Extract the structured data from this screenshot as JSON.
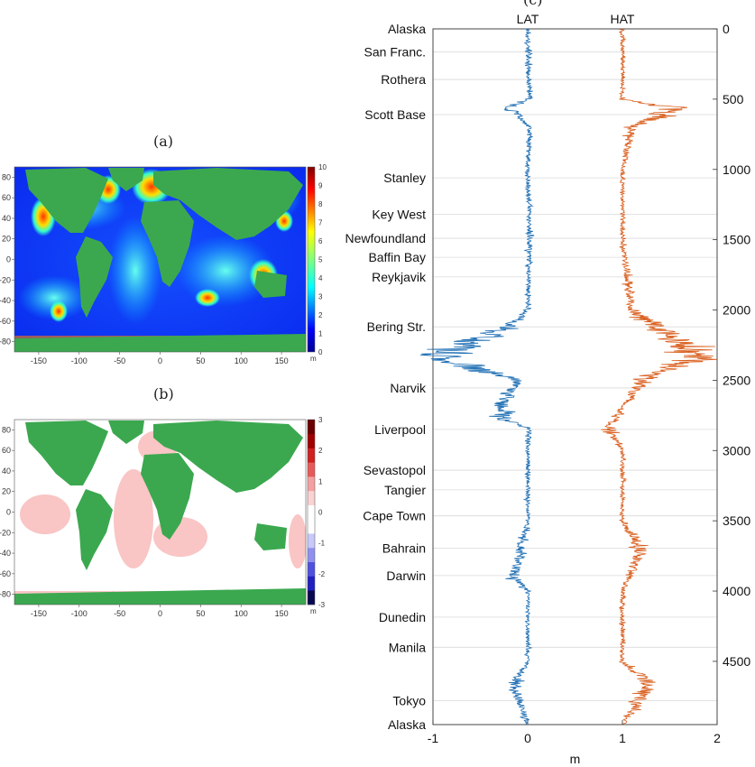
{
  "panels": {
    "a": {
      "label": "(a)"
    },
    "b": {
      "label": "(b)"
    },
    "c": {
      "label": "(c)"
    }
  },
  "colors": {
    "land": "#3ba84f",
    "lat": "#1f6fb4",
    "hat": "#d95f1e",
    "grid": "#d9d9d9"
  },
  "chart_data": [
    {
      "type": "heatmap",
      "panel": "a",
      "xlim": [
        -180,
        180
      ],
      "ylim": [
        -90,
        90
      ],
      "x_ticks": [
        -150,
        -100,
        -50,
        0,
        50,
        100,
        150
      ],
      "y_ticks": [
        80,
        60,
        40,
        20,
        0,
        -20,
        -40,
        -60,
        -80
      ],
      "colorbar": {
        "ticks": [
          0,
          1,
          2,
          3,
          4,
          5,
          6,
          7,
          8,
          9,
          10
        ],
        "unit": "m",
        "range": [
          0,
          10
        ]
      }
    },
    {
      "type": "heatmap",
      "panel": "b",
      "xlim": [
        -180,
        180
      ],
      "ylim": [
        -90,
        90
      ],
      "x_ticks": [
        -150,
        -100,
        -50,
        0,
        50,
        100,
        150
      ],
      "y_ticks": [
        80,
        60,
        40,
        20,
        0,
        -20,
        -40,
        -60,
        -80
      ],
      "colorbar": {
        "ticks": [
          3,
          2,
          1,
          0,
          -1,
          -2,
          -3
        ],
        "unit": "m",
        "range": [
          -3,
          3
        ]
      }
    },
    {
      "type": "line",
      "panel": "c",
      "xlabel": "m",
      "xlim": [
        -1,
        2
      ],
      "x_ticks": [
        -1,
        0,
        1,
        2
      ],
      "ylim": [
        0,
        4950
      ],
      "y_ticks": [
        0,
        500,
        1000,
        1500,
        2000,
        2500,
        3000,
        3500,
        4000,
        4500
      ],
      "y_reversed": true,
      "series": [
        {
          "name": "LAT",
          "center": 0,
          "y": [
            0,
            500,
            560,
            700,
            1000,
            1500,
            2000,
            2120,
            2330,
            2500,
            2680,
            2780,
            2850,
            3000,
            3500,
            3900,
            4000,
            4500,
            4660,
            4950
          ],
          "x": [
            0.0,
            0.02,
            -0.2,
            0.02,
            0.0,
            0.02,
            0.0,
            -0.2,
            -1.0,
            -0.1,
            -0.3,
            -0.25,
            0.02,
            0.0,
            0.0,
            -0.15,
            0.0,
            0.0,
            -0.15,
            0.0
          ]
        },
        {
          "name": "HAT",
          "center": 1,
          "y": [
            0,
            500,
            560,
            700,
            1000,
            1500,
            2000,
            2330,
            2500,
            2850,
            3000,
            3500,
            3700,
            4000,
            4500,
            4660,
            4950
          ],
          "x": [
            1.0,
            1.0,
            1.55,
            1.1,
            1.0,
            1.0,
            1.1,
            1.8,
            1.2,
            0.85,
            1.0,
            1.0,
            1.2,
            1.0,
            1.0,
            1.3,
            1.0
          ]
        }
      ],
      "locations": [
        {
          "name": "Alaska",
          "y": 0
        },
        {
          "name": "San Franc.",
          "y": 165
        },
        {
          "name": "Rothera",
          "y": 360
        },
        {
          "name": "Scott Base",
          "y": 610
        },
        {
          "name": "Stanley",
          "y": 1060
        },
        {
          "name": "Key West",
          "y": 1320
        },
        {
          "name": "Newfoundland",
          "y": 1490
        },
        {
          "name": "Baffin Bay",
          "y": 1625
        },
        {
          "name": "Reykjavik",
          "y": 1765
        },
        {
          "name": "Bering Str.",
          "y": 2120
        },
        {
          "name": "Narvik",
          "y": 2555
        },
        {
          "name": "Liverpool",
          "y": 2850
        },
        {
          "name": "Sevastopol",
          "y": 3140
        },
        {
          "name": "Tangier",
          "y": 3280
        },
        {
          "name": "Cape Town",
          "y": 3465
        },
        {
          "name": "Bahrain",
          "y": 3695
        },
        {
          "name": "Darwin",
          "y": 3890
        },
        {
          "name": "Dunedin",
          "y": 4185
        },
        {
          "name": "Manila",
          "y": 4400
        },
        {
          "name": "Tokyo",
          "y": 4780
        },
        {
          "name": "Alaska",
          "y": 4950
        }
      ]
    }
  ]
}
